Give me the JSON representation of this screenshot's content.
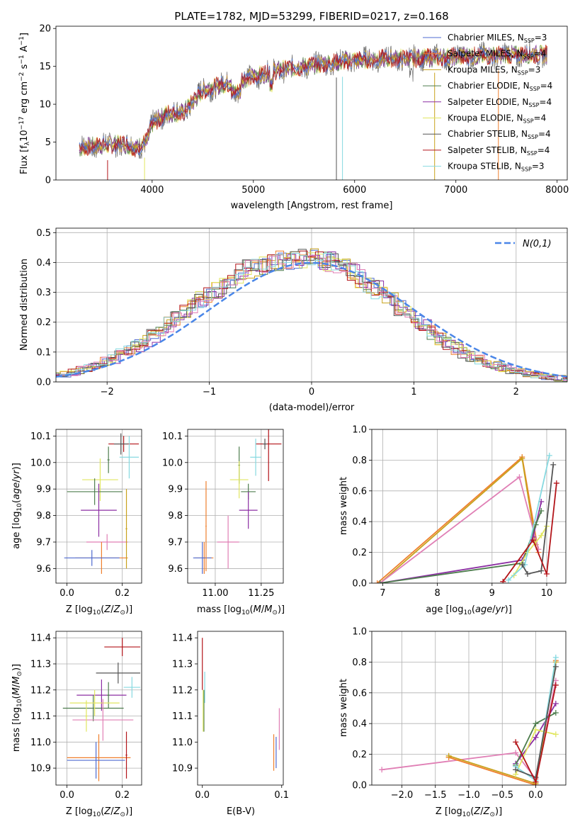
{
  "colors": {
    "Chabrier MILES": "#4f6bd0",
    "Salpeter MILES": "#ef7f2d",
    "Kroupa MILES": "#c8a21c",
    "Chabrier ELODIE": "#4e7d4e",
    "Salpeter ELODIE": "#8c2fa3",
    "Kroupa ELODIE": "#e1e660",
    "Chabrier STELIB": "#555555",
    "Salpeter STELIB": "#b3151a",
    "Kroupa STELIB": "#86d9e0",
    "extra_pink": "#e07fb5",
    "gauss": "#4a86e8",
    "grid": "#b0b0b0"
  },
  "chart_data": [
    {
      "id": "spectrum",
      "type": "line",
      "title": "PLATE=1782, MJD=53299, FIBERID=0217, z=0.168",
      "xlabel": "wavelength [Angstrom, rest frame]",
      "ylabel": "Flux [f_λ 10^-17 erg cm^-2 s^-1 A^-1]",
      "xlim": [
        3050,
        8100
      ],
      "ylim": [
        0,
        20.3
      ],
      "xticks": [
        4000,
        5000,
        6000,
        7000,
        8000
      ],
      "yticks": [
        0,
        5,
        10,
        15,
        20
      ],
      "grid": false,
      "legend_placement": "top-right",
      "legend": [
        {
          "model": "Chabrier MILES",
          "nssp": "3"
        },
        {
          "model": "Salpeter MILES",
          "nssp": "4"
        },
        {
          "model": "Kroupa MILES",
          "nssp": "3"
        },
        {
          "model": "Chabrier ELODIE",
          "nssp": "4"
        },
        {
          "model": "Salpeter ELODIE",
          "nssp": "4"
        },
        {
          "model": "Kroupa ELODIE",
          "nssp": "4"
        },
        {
          "model": "Chabrier STELIB",
          "nssp": "4"
        },
        {
          "model": "Salpeter STELIB",
          "nssp": "4"
        },
        {
          "model": "Kroupa STELIB",
          "nssp": "3"
        }
      ],
      "continuum": [
        [
          3280,
          4.2
        ],
        [
          3400,
          4.5
        ],
        [
          3550,
          4.6
        ],
        [
          3700,
          4.8
        ],
        [
          3850,
          4.2
        ],
        [
          3950,
          5.2
        ],
        [
          4000,
          7.4
        ],
        [
          4150,
          8.8
        ],
        [
          4300,
          8.8
        ],
        [
          4500,
          11.8
        ],
        [
          4800,
          13.0
        ],
        [
          5000,
          13.6
        ],
        [
          5200,
          14.4
        ],
        [
          5500,
          15.0
        ],
        [
          5800,
          15.5
        ],
        [
          6000,
          15.8
        ],
        [
          6300,
          16.0
        ],
        [
          6600,
          16.1
        ],
        [
          6900,
          16.2
        ],
        [
          7200,
          16.4
        ],
        [
          7500,
          16.5
        ],
        [
          7900,
          16.6
        ]
      ],
      "dips": [
        [
          3560,
          0
        ],
        [
          3925,
          0
        ],
        [
          5820,
          0
        ],
        [
          5880,
          0
        ],
        [
          6790,
          0
        ],
        [
          7420,
          0
        ]
      ]
    },
    {
      "id": "residuals",
      "type": "histogram",
      "xlabel": "(data-model)/error",
      "ylabel": "Normed distribution",
      "xlim": [
        -2.5,
        2.5
      ],
      "ylim": [
        0,
        0.515
      ],
      "xticks": [
        -2,
        -1,
        0,
        1,
        2
      ],
      "yticks": [
        0.0,
        0.1,
        0.2,
        0.3,
        0.4,
        0.5
      ],
      "grid": true,
      "legend_placement": "top-right",
      "gauss_label": "N(0,1)",
      "bin_width": 0.1,
      "base_shape": [
        0.017,
        0.021,
        0.026,
        0.033,
        0.04,
        0.047,
        0.056,
        0.067,
        0.079,
        0.093,
        0.107,
        0.122,
        0.139,
        0.155,
        0.172,
        0.192,
        0.212,
        0.232,
        0.255,
        0.275,
        0.293,
        0.31,
        0.327,
        0.344,
        0.362,
        0.375,
        0.385,
        0.396,
        0.402,
        0.407,
        0.411,
        0.413,
        0.414,
        0.414,
        0.413,
        0.406,
        0.395,
        0.382,
        0.366,
        0.348,
        0.328,
        0.31,
        0.29,
        0.27,
        0.25,
        0.228,
        0.205,
        0.185,
        0.165,
        0.145,
        0.128,
        0.112,
        0.097,
        0.085,
        0.073,
        0.063,
        0.054,
        0.046,
        0.039,
        0.033,
        0.027,
        0.022,
        0.018,
        0.015,
        0.013,
        0.011,
        0.009
      ]
    },
    {
      "id": "z_age",
      "type": "errorbar",
      "xlabel": "Z [log10(Z/Z⊙)]",
      "ylabel": "age [log10(age/yr)]",
      "xlim": [
        -0.04,
        0.27
      ],
      "ylim": [
        9.545,
        10.125
      ],
      "xticks": [
        0.0,
        0.2
      ],
      "yticks": [
        9.6,
        9.7,
        9.8,
        9.9,
        10.0,
        10.1
      ],
      "grid": true,
      "points": [
        {
          "c": "Salpeter STELIB",
          "x": 0.205,
          "y": 10.07,
          "xerr": 0.055,
          "yerr": 0.03
        },
        {
          "c": "Kroupa STELIB",
          "x": 0.225,
          "y": 10.02,
          "xerr": 0.035,
          "yerr": 0.08
        },
        {
          "c": "Chabrier STELIB",
          "x": 0.195,
          "y": 10.07,
          "xerr": 0.025,
          "yerr": 0.04
        },
        {
          "c": "Chabrier ELODIE",
          "x": 0.15,
          "y": 10.01,
          "xerr": 0.004,
          "yerr": 0.05
        },
        {
          "c": "Kroupa ELODIE",
          "x": 0.12,
          "y": 9.935,
          "xerr": 0.065,
          "yerr": 0.08
        },
        {
          "c": "Chabrier ELODIE",
          "x": 0.1,
          "y": 9.89,
          "xerr": 0.1,
          "yerr": 0.05
        },
        {
          "c": "Salpeter ELODIE",
          "x": 0.115,
          "y": 9.82,
          "xerr": 0.065,
          "yerr": 0.1
        },
        {
          "c": "extra_pink",
          "x": 0.145,
          "y": 9.7,
          "xerr": 0.075,
          "yerr": 0.03
        },
        {
          "c": "Salpeter MILES",
          "x": 0.125,
          "y": 9.64,
          "xerr": 0.095,
          "yerr": 0.06
        },
        {
          "c": "Chabrier MILES",
          "x": 0.09,
          "y": 9.64,
          "xerr": 0.1,
          "yerr": 0.03
        },
        {
          "c": "Kroupa MILES",
          "x": 0.215,
          "y": 9.75,
          "xerr": 0.003,
          "yerr": 0.15
        }
      ]
    },
    {
      "id": "mass_age",
      "type": "errorbar",
      "xlabel": "mass [log10(M/M⊙)]",
      "ylabel": "",
      "xlim": [
        10.85,
        11.37
      ],
      "ylim": [
        9.545,
        10.125
      ],
      "xticks": [
        11.0,
        11.25
      ],
      "yticks": [
        9.6,
        9.7,
        9.8,
        9.9,
        10.0,
        10.1
      ],
      "grid": true,
      "points": [
        {
          "c": "Salpeter STELIB",
          "x": 11.29,
          "y": 10.07,
          "xerr": 0.07,
          "yerr": 0.14
        },
        {
          "c": "Kroupa STELIB",
          "x": 11.22,
          "y": 10.02,
          "xerr": 0.03,
          "yerr": 0.07
        },
        {
          "c": "Chabrier STELIB",
          "x": 11.27,
          "y": 10.07,
          "xerr": 0.01,
          "yerr": 0.02
        },
        {
          "c": "Chabrier ELODIE",
          "x": 11.13,
          "y": 9.99,
          "xerr": 0.005,
          "yerr": 0.07
        },
        {
          "c": "Kroupa ELODIE",
          "x": 11.13,
          "y": 9.935,
          "xerr": 0.05,
          "yerr": 0.07
        },
        {
          "c": "Chabrier ELODIE",
          "x": 11.18,
          "y": 9.89,
          "xerr": 0.04,
          "yerr": 0.03
        },
        {
          "c": "Salpeter ELODIE",
          "x": 11.18,
          "y": 9.82,
          "xerr": 0.05,
          "yerr": 0.07
        },
        {
          "c": "extra_pink",
          "x": 11.07,
          "y": 9.7,
          "xerr": 0.06,
          "yerr": 0.1
        },
        {
          "c": "Salpeter MILES",
          "x": 10.94,
          "y": 9.64,
          "xerr": 0.05,
          "yerr": 0.06
        },
        {
          "c": "Chabrier MILES",
          "x": 10.93,
          "y": 9.64,
          "xerr": 0.05,
          "yerr": 0.06
        },
        {
          "c": "Salpeter MILES",
          "x": 10.95,
          "y": 9.76,
          "xerr": 0.003,
          "yerr": 0.17
        }
      ]
    },
    {
      "id": "age_weight",
      "type": "line",
      "xlabel": "age [log10(age/yr)]",
      "ylabel": "mass weight",
      "xlim": [
        6.8,
        10.35
      ],
      "ylim": [
        0,
        1
      ],
      "xticks": [
        7,
        8,
        9,
        10
      ],
      "yticks": [
        0.0,
        0.2,
        0.4,
        0.6,
        0.8,
        1.0
      ],
      "grid": true,
      "series": [
        {
          "c": "Salpeter MILES",
          "pts": [
            [
              6.9,
              0
            ],
            [
              9.55,
              0.82
            ],
            [
              9.85,
              0.2
            ]
          ]
        },
        {
          "c": "Kroupa MILES",
          "pts": [
            [
              6.95,
              0
            ],
            [
              9.55,
              0.81
            ],
            [
              9.8,
              0.25
            ]
          ]
        },
        {
          "c": "extra_pink",
          "pts": [
            [
              6.95,
              0
            ],
            [
              9.5,
              0.69
            ],
            [
              9.85,
              0.22
            ]
          ]
        },
        {
          "c": "Salpeter ELODIE",
          "pts": [
            [
              6.95,
              0
            ],
            [
              9.55,
              0.15
            ],
            [
              9.75,
              0.3
            ],
            [
              9.9,
              0.53
            ]
          ]
        },
        {
          "c": "Chabrier ELODIE",
          "pts": [
            [
              6.95,
              0
            ],
            [
              9.55,
              0.13
            ],
            [
              9.8,
              0.38
            ],
            [
              9.9,
              0.47
            ]
          ]
        },
        {
          "c": "Kroupa ELODIE",
          "pts": [
            [
              9.4,
              0.05
            ],
            [
              9.65,
              0.2
            ],
            [
              9.9,
              0.31
            ],
            [
              10.0,
              0.37
            ]
          ]
        },
        {
          "c": "Kroupa STELIB",
          "pts": [
            [
              9.3,
              0.02
            ],
            [
              9.6,
              0.12
            ],
            [
              10.05,
              0.83
            ]
          ]
        },
        {
          "c": "Chabrier STELIB",
          "pts": [
            [
              9.55,
              0.12
            ],
            [
              9.65,
              0.06
            ],
            [
              9.9,
              0.08
            ],
            [
              10.12,
              0.77
            ]
          ]
        },
        {
          "c": "Salpeter STELIB",
          "pts": [
            [
              9.2,
              0.01
            ],
            [
              9.75,
              0.28
            ],
            [
              10.0,
              0.06
            ],
            [
              10.18,
              0.65
            ]
          ]
        }
      ]
    },
    {
      "id": "z_mass",
      "type": "errorbar",
      "xlabel": "Z [log10(Z/Z⊙)]",
      "ylabel": "mass [log10(M/M⊙)]",
      "xlim": [
        -0.04,
        0.27
      ],
      "ylim": [
        10.835,
        11.425
      ],
      "xticks": [
        0.0,
        0.2
      ],
      "yticks": [
        10.9,
        11.0,
        11.1,
        11.2,
        11.3,
        11.4
      ],
      "grid": true,
      "points": [
        {
          "c": "Salpeter STELIB",
          "x": 0.2,
          "y": 11.365,
          "xerr": 0.065,
          "yerr": 0.035
        },
        {
          "c": "Chabrier STELIB",
          "x": 0.185,
          "y": 11.265,
          "xerr": 0.08,
          "yerr": 0.04
        },
        {
          "c": "Kroupa STELIB",
          "x": 0.235,
          "y": 11.21,
          "xerr": 0.03,
          "yerr": 0.04
        },
        {
          "c": "Salpeter ELODIE",
          "x": 0.125,
          "y": 11.18,
          "xerr": 0.09,
          "yerr": 0.06
        },
        {
          "c": "Chabrier ELODIE",
          "x": 0.15,
          "y": 11.18,
          "xerr": 0.005,
          "yerr": 0.05
        },
        {
          "c": "Chabrier ELODIE",
          "x": 0.095,
          "y": 11.13,
          "xerr": 0.11,
          "yerr": 0.05
        },
        {
          "c": "Kroupa ELODIE",
          "x": 0.1,
          "y": 11.15,
          "xerr": 0.09,
          "yerr": 0.05
        },
        {
          "c": "extra_pink",
          "x": 0.13,
          "y": 11.085,
          "xerr": 0.11,
          "yerr": 0.08
        },
        {
          "c": "Kroupa ELODIE",
          "x": 0.07,
          "y": 11.1,
          "xerr": 0.004,
          "yerr": 0.06
        },
        {
          "c": "Salpeter MILES",
          "x": 0.115,
          "y": 10.94,
          "xerr": 0.115,
          "yerr": 0.09
        },
        {
          "c": "Chabrier MILES",
          "x": 0.105,
          "y": 10.93,
          "xerr": 0.105,
          "yerr": 0.07
        },
        {
          "c": "Salpeter STELIB",
          "x": 0.215,
          "y": 10.95,
          "xerr": 0.003,
          "yerr": 0.09
        }
      ]
    },
    {
      "id": "ebv_mass",
      "type": "errorbar",
      "xlabel": "E(B-V)",
      "ylabel": "",
      "xlim": [
        -0.006,
        0.102
      ],
      "ylim": [
        10.835,
        11.425
      ],
      "xticks": [
        0.0,
        0.1
      ],
      "yticks": [
        10.9,
        11.0,
        11.1,
        11.2,
        11.3,
        11.4
      ],
      "grid": false,
      "points": [
        {
          "c": "Salpeter STELIB",
          "x": 0.0,
          "y": 11.3,
          "xerr": 0,
          "yerr": 0.1
        },
        {
          "c": "Kroupa STELIB",
          "x": 0.003,
          "y": 11.21,
          "xerr": 0,
          "yerr": 0.06
        },
        {
          "c": "Chabrier ELODIE",
          "x": 0.002,
          "y": 11.12,
          "xerr": 0,
          "yerr": 0.08
        },
        {
          "c": "Kroupa ELODIE",
          "x": 0.001,
          "y": 11.12,
          "xerr": 0,
          "yerr": 0.08
        },
        {
          "c": "Salpeter MILES",
          "x": 0.09,
          "y": 10.96,
          "xerr": 0,
          "yerr": 0.07
        },
        {
          "c": "Chabrier MILES",
          "x": 0.093,
          "y": 10.96,
          "xerr": 0,
          "yerr": 0.06
        },
        {
          "c": "extra_pink",
          "x": 0.097,
          "y": 11.05,
          "xerr": 0,
          "yerr": 0.08
        }
      ]
    },
    {
      "id": "z_weight",
      "type": "line",
      "xlabel": "Z [log10(Z/Z⊙)]",
      "ylabel": "mass weight",
      "xlim": [
        -2.45,
        0.45
      ],
      "ylim": [
        0,
        1
      ],
      "xticks": [
        -2.0,
        -1.5,
        -1.0,
        -0.5,
        0.0
      ],
      "yticks": [
        0.0,
        0.2,
        0.4,
        0.6,
        0.8,
        1.0
      ],
      "grid": true,
      "series": [
        {
          "c": "extra_pink",
          "pts": [
            [
              -2.3,
              0.1
            ],
            [
              -0.3,
              0.21
            ],
            [
              0.0,
              0.04
            ],
            [
              0.3,
              0.68
            ]
          ]
        },
        {
          "c": "Salpeter MILES",
          "pts": [
            [
              -1.3,
              0.18
            ],
            [
              0.0,
              0.0
            ],
            [
              0.3,
              0.81
            ]
          ]
        },
        {
          "c": "Kroupa MILES",
          "pts": [
            [
              -1.3,
              0.19
            ],
            [
              0.0,
              0.01
            ],
            [
              0.3,
              0.8
            ]
          ]
        },
        {
          "c": "Salpeter ELODIE",
          "pts": [
            [
              -0.3,
              0.14
            ],
            [
              0.0,
              0.31
            ],
            [
              0.3,
              0.53
            ]
          ]
        },
        {
          "c": "Chabrier ELODIE",
          "pts": [
            [
              -0.3,
              0.13
            ],
            [
              0.0,
              0.4
            ],
            [
              0.3,
              0.47
            ]
          ]
        },
        {
          "c": "Kroupa ELODIE",
          "pts": [
            [
              -0.3,
              0.07
            ],
            [
              0.0,
              0.36
            ],
            [
              0.3,
              0.33
            ]
          ]
        },
        {
          "c": "Kroupa STELIB",
          "pts": [
            [
              -0.3,
              0.12
            ],
            [
              0.0,
              0.03
            ],
            [
              0.3,
              0.83
            ]
          ]
        },
        {
          "c": "Chabrier STELIB",
          "pts": [
            [
              -0.3,
              0.1
            ],
            [
              0.0,
              0.05
            ],
            [
              0.3,
              0.77
            ]
          ]
        },
        {
          "c": "Salpeter STELIB",
          "pts": [
            [
              -0.3,
              0.28
            ],
            [
              0.0,
              0.02
            ],
            [
              0.3,
              0.65
            ]
          ]
        }
      ]
    }
  ]
}
